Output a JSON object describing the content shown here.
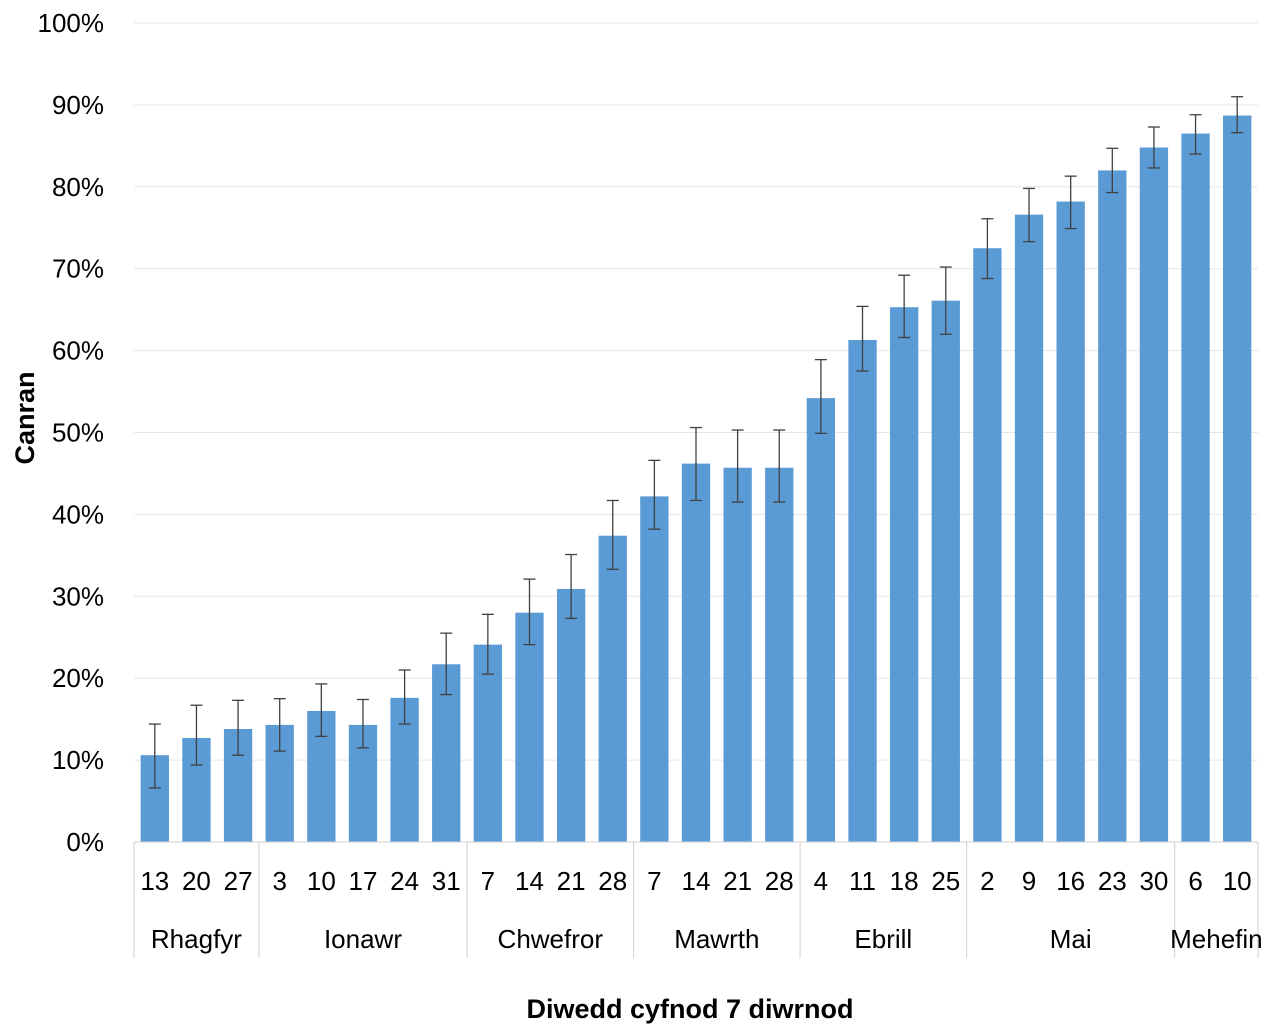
{
  "chart_data": {
    "type": "bar",
    "xlabel": "Diwedd cyfnod 7 diwrnod",
    "ylabel": "Canran",
    "ylim": [
      0,
      100
    ],
    "yticks": [
      "0%",
      "10%",
      "20%",
      "30%",
      "40%",
      "50%",
      "60%",
      "70%",
      "80%",
      "90%",
      "100%"
    ],
    "grid": "horizontal",
    "bar_color": "#5b9bd5",
    "categories": [
      "13",
      "20",
      "27",
      "3",
      "10",
      "17",
      "24",
      "31",
      "7",
      "14",
      "21",
      "28",
      "7",
      "14",
      "21",
      "28",
      "4",
      "11",
      "18",
      "25",
      "2",
      "9",
      "16",
      "23",
      "30",
      "6",
      "10"
    ],
    "groups": [
      {
        "label": "Rhagfyr",
        "count": 3
      },
      {
        "label": "Ionawr",
        "count": 5
      },
      {
        "label": "Chwefror",
        "count": 4
      },
      {
        "label": "Mawrth",
        "count": 4
      },
      {
        "label": "Ebrill",
        "count": 4
      },
      {
        "label": "Mai",
        "count": 5
      },
      {
        "label": "Mehefin",
        "count": 2
      }
    ],
    "values": [
      10.6,
      12.7,
      13.8,
      14.3,
      16.0,
      14.3,
      17.6,
      21.7,
      24.1,
      28.0,
      30.9,
      37.4,
      42.2,
      46.2,
      45.7,
      45.7,
      54.2,
      61.3,
      65.3,
      66.1,
      72.5,
      76.6,
      78.2,
      82.0,
      84.8,
      86.5,
      88.7
    ],
    "err_low": [
      6.6,
      9.4,
      10.6,
      11.1,
      12.9,
      11.5,
      14.4,
      18.0,
      20.5,
      24.1,
      27.3,
      33.3,
      38.2,
      41.7,
      41.5,
      41.5,
      49.9,
      57.5,
      61.6,
      62.0,
      68.8,
      73.3,
      74.9,
      79.3,
      82.3,
      84.0,
      86.6
    ],
    "err_high": [
      14.4,
      16.7,
      17.3,
      17.5,
      19.3,
      17.4,
      21.0,
      25.5,
      27.8,
      32.1,
      35.1,
      41.7,
      46.6,
      50.6,
      50.3,
      50.3,
      58.9,
      65.4,
      69.2,
      70.2,
      76.1,
      79.8,
      81.3,
      84.7,
      87.3,
      88.8,
      91.0
    ]
  }
}
